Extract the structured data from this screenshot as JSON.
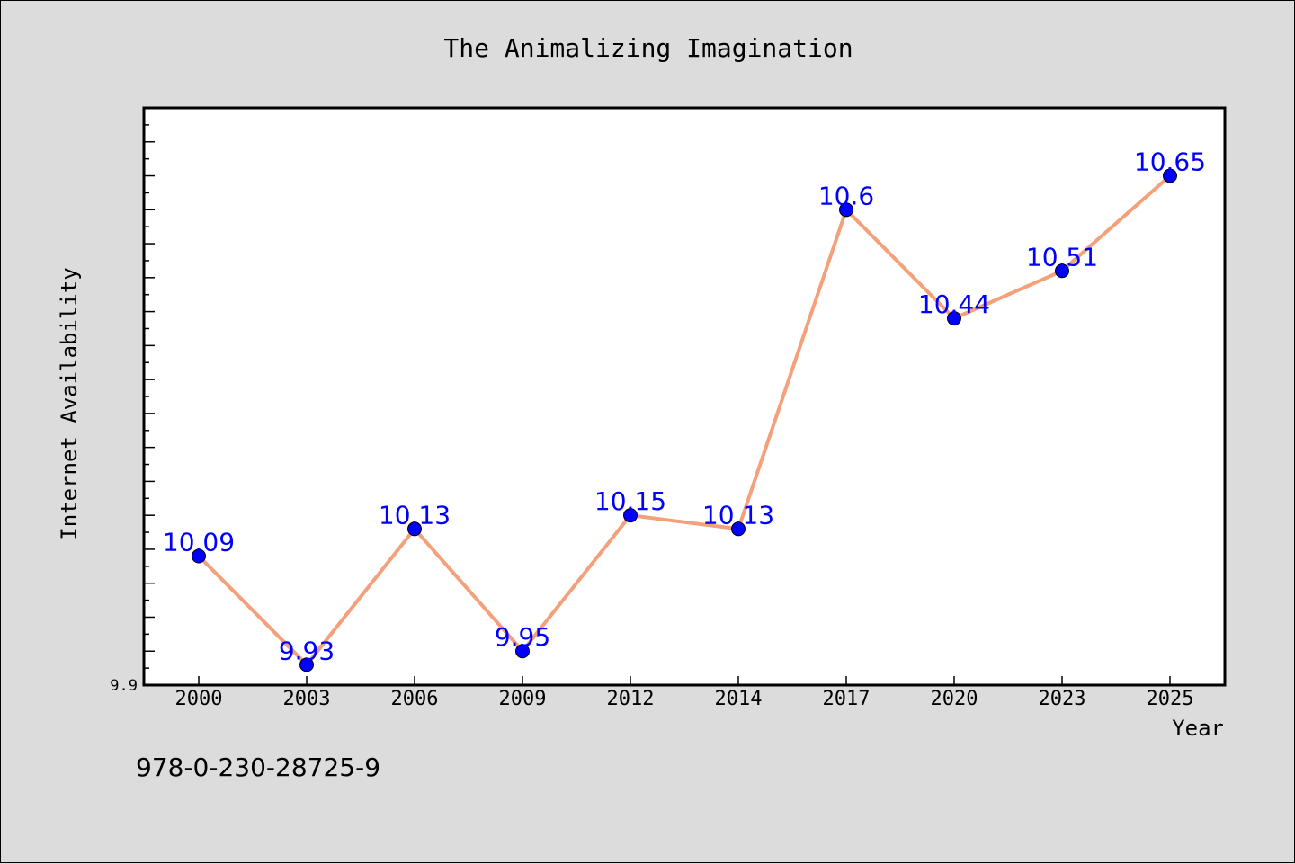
{
  "chart_data": {
    "type": "line",
    "title": "The Animalizing Imagination",
    "xlabel": "Year",
    "ylabel": "Internet Availability",
    "categories": [
      "2000",
      "2003",
      "2006",
      "2009",
      "2012",
      "2014",
      "2017",
      "2020",
      "2023",
      "2025"
    ],
    "series": [
      {
        "values": [
          10.09,
          9.93,
          10.13,
          9.95,
          10.15,
          10.13,
          10.6,
          10.44,
          10.51,
          10.65
        ],
        "labels": [
          "10.09",
          "9.93",
          "10.13",
          "9.95",
          "10.15",
          "10.13",
          "10.6",
          "10.44",
          "10.51",
          "10.65"
        ]
      }
    ],
    "ylim": [
      9.9,
      10.75
    ],
    "yticks_labeled": [
      "9.9"
    ],
    "grid": false,
    "legend": "none",
    "colors": {
      "line": "#f4a07a",
      "marker": "#0000ff",
      "data_label": "#0000ff",
      "plot_bg": "#ffffff",
      "page_bg": "#dcdcdc"
    }
  },
  "footer_text": "978-0-230-28725-9"
}
